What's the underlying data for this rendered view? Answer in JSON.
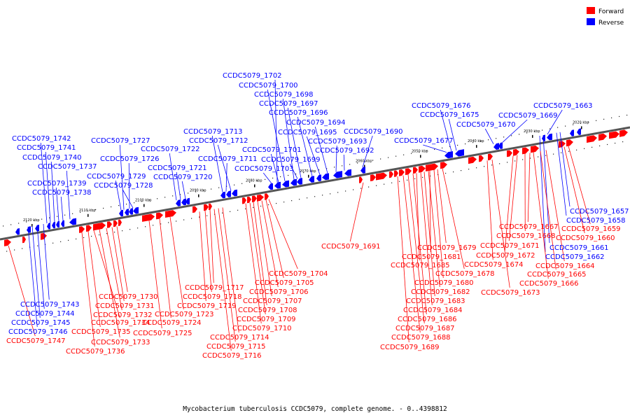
{
  "caption": "Mycobacterium tuberculosis CCDC5079, complete genome. - 0..4398812",
  "legend": [
    {
      "label": "Forward",
      "color": "#ff0000"
    },
    {
      "label": "Reverse",
      "color": "#0000ff"
    }
  ],
  "kbp_ticks": [
    "2020 kbp",
    "2030 kbp",
    "2040 kbp",
    "2050 kbp",
    "2060 kbp",
    "2070 kbp",
    "2080 kbp",
    "2090 kbp",
    "2100 kbp",
    "2110 kbp",
    "2120 kbp"
  ],
  "reverse_genes": [
    "CCDC5079_1657",
    "CCDC5079_1658",
    "CCDC5079_1661",
    "CCDC5079_1662",
    "CCDC5079_1663",
    "CCDC5079_1669",
    "CCDC5079_1670",
    "CCDC5079_1675",
    "CCDC5079_1676",
    "CCDC5079_1677",
    "CCDC5079_1690",
    "CCDC5079_1692",
    "CCDC5079_1693",
    "CCDC5079_1694",
    "CCDC5079_1695",
    "CCDC5079_1696",
    "CCDC5079_1697",
    "CCDC5079_1698",
    "CCDC5079_1699",
    "CCDC5079_1700",
    "CCDC5079_1701",
    "CCDC5079_1702",
    "CCDC5079_1703",
    "CCDC5079_1711",
    "CCDC5079_1712",
    "CCDC5079_1713",
    "CCDC5079_1720",
    "CCDC5079_1721",
    "CCDC5079_1722",
    "CCDC5079_1726",
    "CCDC5079_1727",
    "CCDC5079_1728",
    "CCDC5079_1729",
    "CCDC5079_1737",
    "CCDC5079_1738",
    "CCDC5079_1739",
    "CCDC5079_1740",
    "CCDC5079_1741",
    "CCDC5079_1742",
    "CCDC5079_1743",
    "CCDC5079_1744",
    "CCDC5079_1745",
    "CCDC5079_1746"
  ],
  "forward_genes": [
    "CCDC5079_1659",
    "CCDC5079_1660",
    "CCDC5079_1664",
    "CCDC5079_1665",
    "CCDC5079_1666",
    "CCDC5079_1667",
    "CCDC5079_1668",
    "CCDC5079_1671",
    "CCDC5079_1672",
    "CCDC5079_1673",
    "CCDC5079_1674",
    "CCDC5079_1678",
    "CCDC5079_1679",
    "CCDC5079_1680",
    "CCDC5079_1681",
    "CCDC5079_1682",
    "CCDC5079_1683",
    "CCDC5079_1684",
    "CCDC5079_1685",
    "CCDC5079_1686",
    "CCDC5079_1687",
    "CCDC5079_1688",
    "CCDC5079_1689",
    "CCDC5079_1691",
    "CCDC5079_1704",
    "CCDC5079_1705",
    "CCDC5079_1706",
    "CCDC5079_1707",
    "CCDC5079_1708",
    "CCDC5079_1709",
    "CCDC5079_1710",
    "CCDC5079_1714",
    "CCDC5079_1715",
    "CCDC5079_1716",
    "CCDC5079_1717",
    "CCDC5079_1718",
    "CCDC5079_1719",
    "CCDC5079_1723",
    "CCDC5079_1724",
    "CCDC5079_1725",
    "CCDC5079_1730",
    "CCDC5079_1731",
    "CCDC5079_1732",
    "CCDC5079_1733",
    "CCDC5079_1734",
    "CCDC5079_1735",
    "CCDC5079_1736",
    "CCDC5079_1747"
  ]
}
